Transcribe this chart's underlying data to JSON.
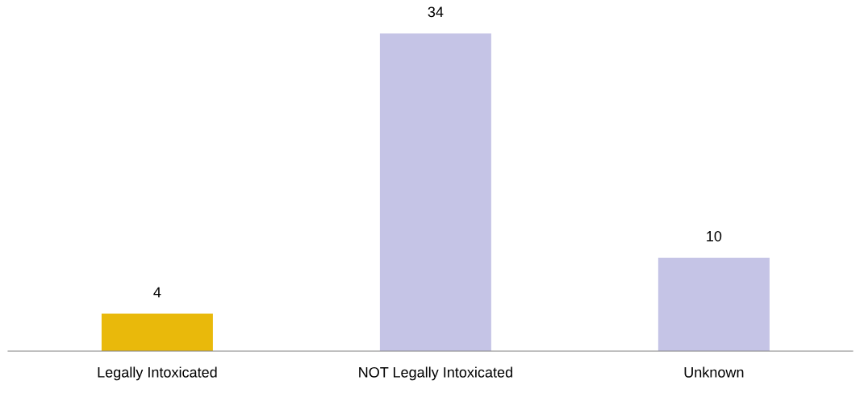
{
  "chart_data": {
    "type": "bar",
    "categories": [
      "Legally Intoxicated",
      "NOT Legally Intoxicated",
      "Unknown"
    ],
    "values": [
      4,
      34,
      10
    ],
    "colors": [
      "#e9b90b",
      "#c5c4e6",
      "#c5c4e6"
    ],
    "data_labels": true,
    "grid": false,
    "legend": false
  }
}
